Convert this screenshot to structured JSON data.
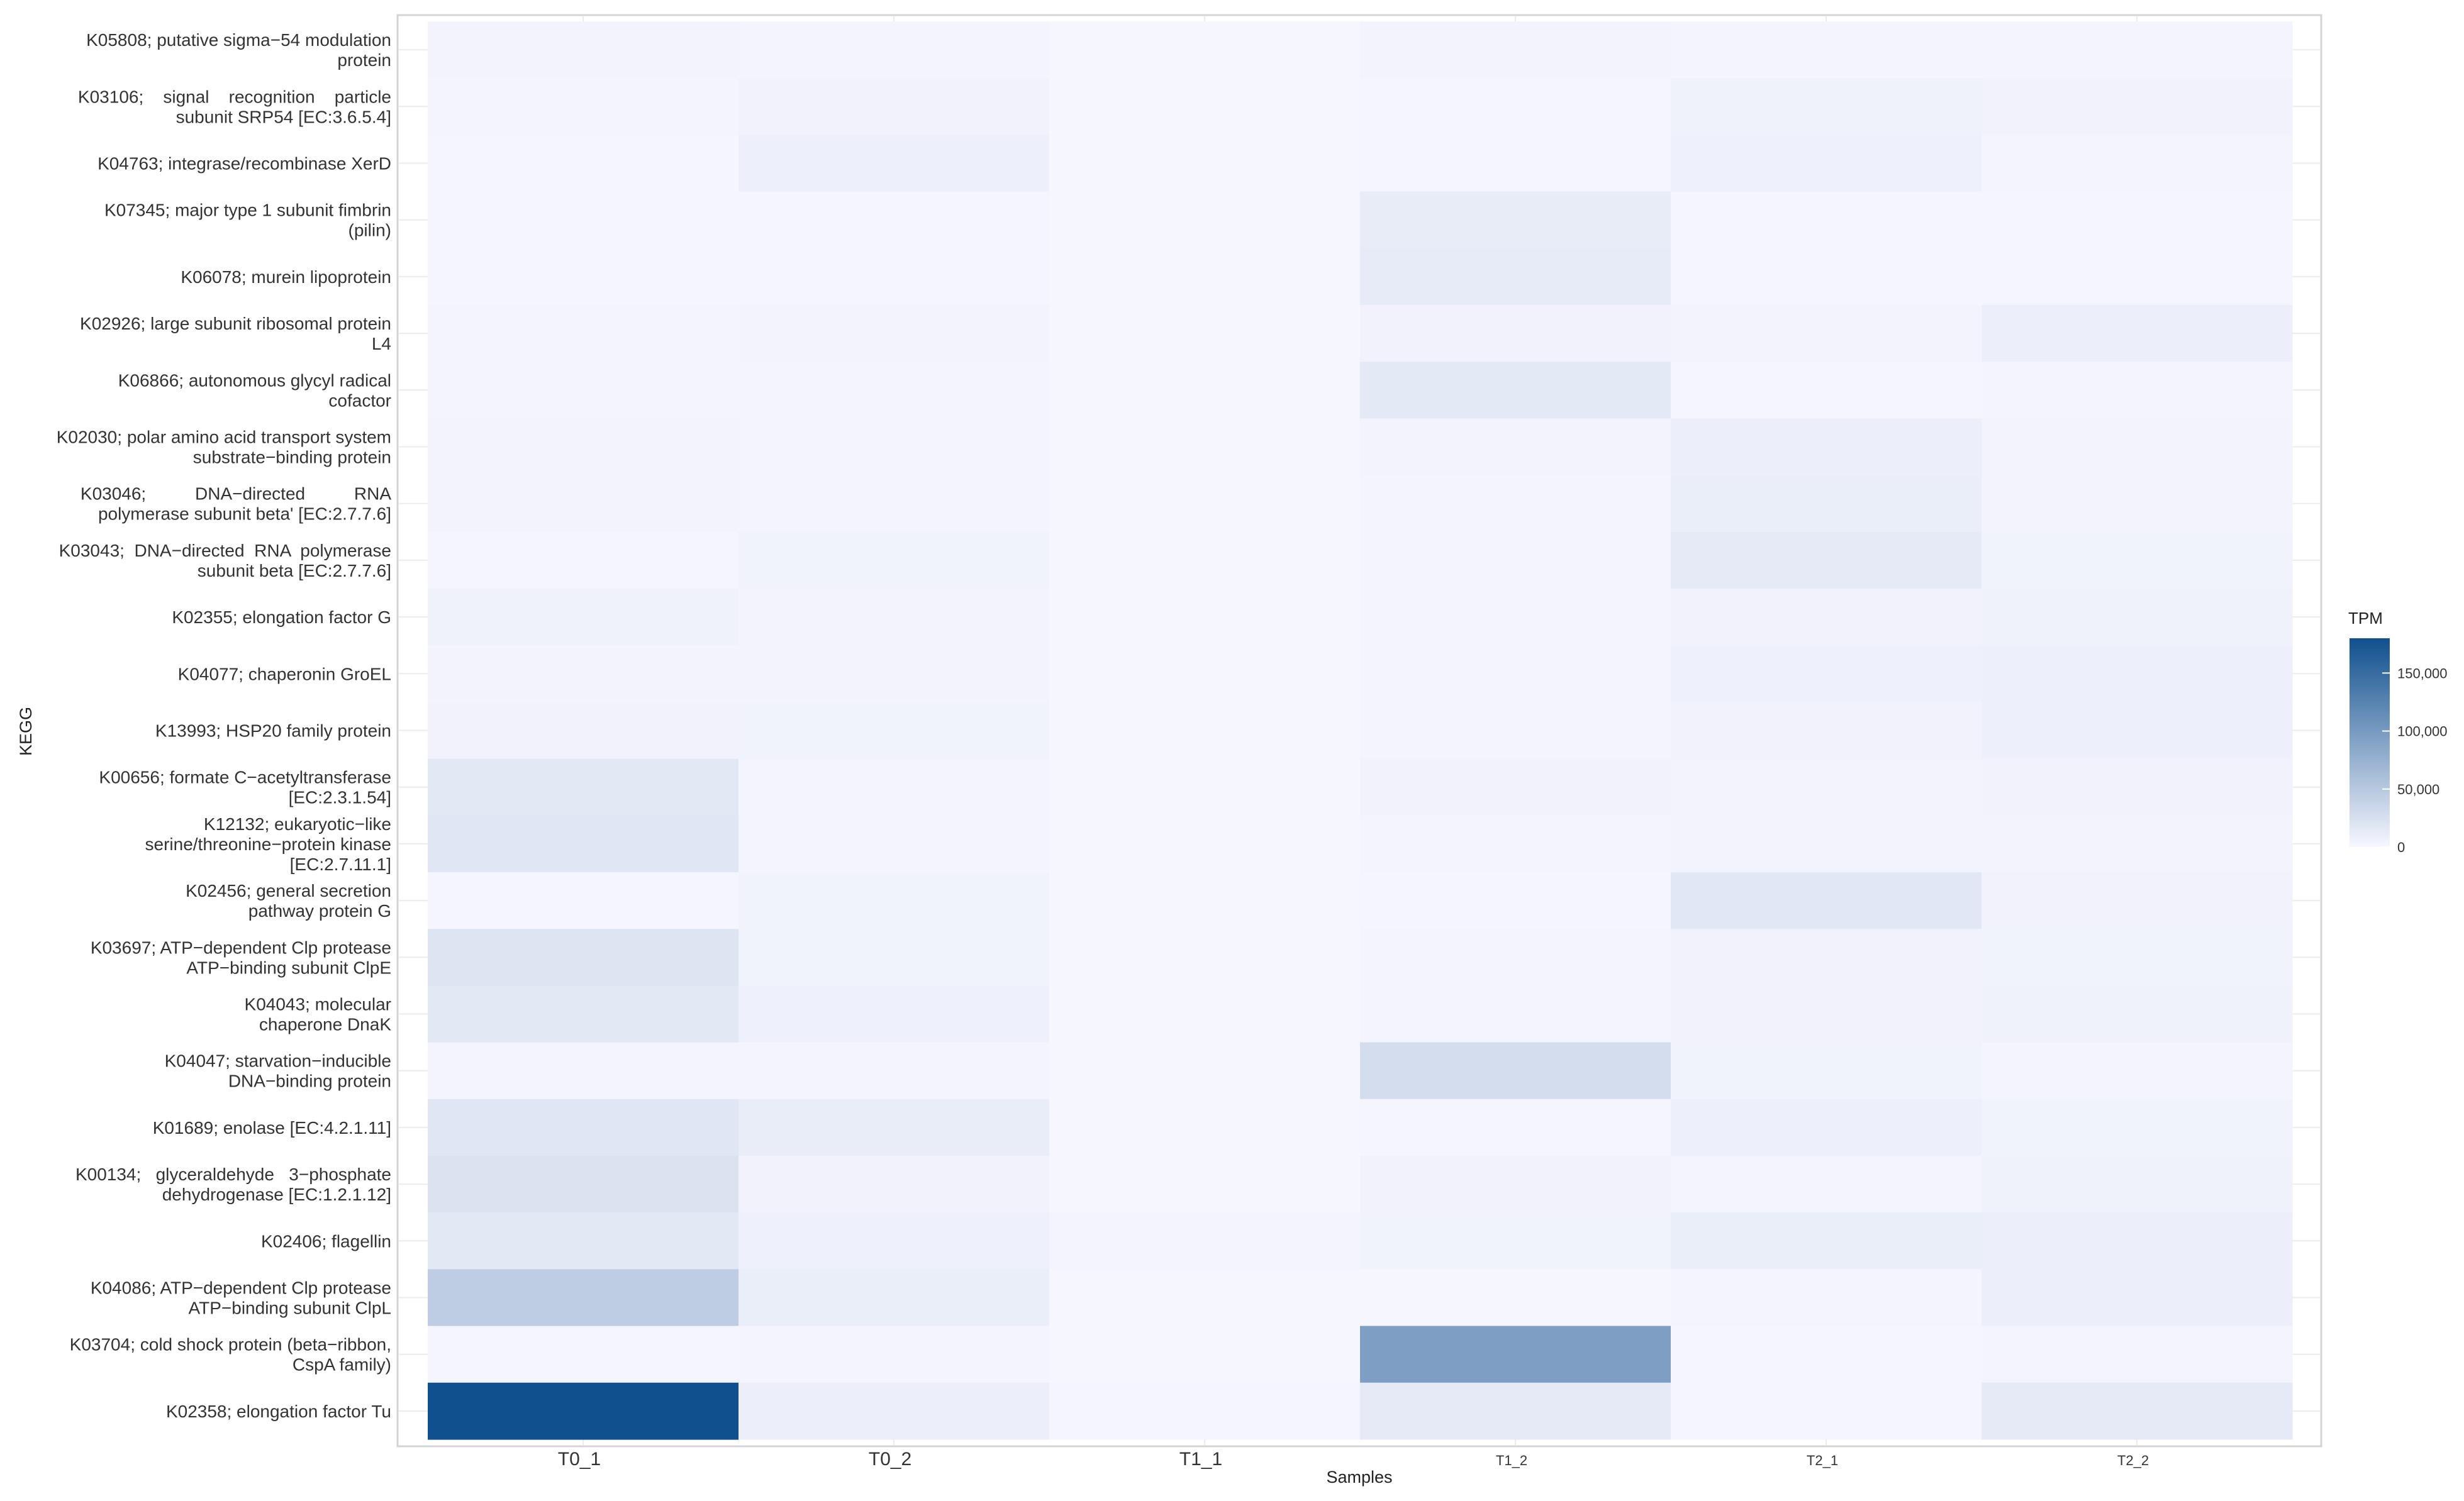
{
  "chart_data": {
    "type": "heatmap",
    "xlabel": "Samples",
    "ylabel": "KEGG",
    "x": [
      "T0_1",
      "T0_2",
      "T1_1",
      "T1_2",
      "T2_1",
      "T2_2"
    ],
    "y": [
      [
        "K05808; putative sigma−54 modulation",
        "protein"
      ],
      [
        "K03106;    signal    recognition    particle",
        "subunit SRP54 [EC:3.6.5.4]"
      ],
      [
        "K04763; integrase/recombinase XerD"
      ],
      [
        "K07345; major type 1 subunit fimbrin",
        "(pilin)"
      ],
      [
        "K06078; murein lipoprotein"
      ],
      [
        "K02926; large subunit ribosomal protein",
        "L4"
      ],
      [
        "K06866; autonomous glycyl radical",
        "cofactor"
      ],
      [
        "K02030; polar amino acid transport system",
        "substrate−binding protein"
      ],
      [
        "K03046;          DNA−directed          RNA",
        "polymerase subunit beta' [EC:2.7.7.6]"
      ],
      [
        "K03043;  DNA−directed  RNA  polymerase",
        "subunit beta [EC:2.7.7.6]"
      ],
      [
        "K02355; elongation factor G"
      ],
      [
        "K04077; chaperonin GroEL"
      ],
      [
        "K13993; HSP20 family protein"
      ],
      [
        "K00656; formate C−acetyltransferase",
        "[EC:2.3.1.54]"
      ],
      [
        "K12132; eukaryotic−like",
        "serine/threonine−protein kinase",
        "[EC:2.7.11.1]"
      ],
      [
        "K02456; general secretion",
        "pathway protein G"
      ],
      [
        "K03697; ATP−dependent Clp protease",
        "ATP−binding subunit ClpE"
      ],
      [
        "K04043; molecular",
        "chaperone DnaK"
      ],
      [
        "K04047; starvation−inducible",
        "DNA−binding protein"
      ],
      [
        "K01689; enolase [EC:4.2.1.11]"
      ],
      [
        "K00134;   glyceraldehyde   3−phosphate",
        "dehydrogenase [EC:1.2.1.12]"
      ],
      [
        "K02406; flagellin"
      ],
      [
        "K04086; ATP−dependent Clp protease",
        "ATP−binding subunit ClpL"
      ],
      [
        "K03704; cold shock protein (beta−ribbon,",
        "CspA family)"
      ],
      [
        "K02358; elongation factor Tu"
      ]
    ],
    "values": [
      [
        4000,
        3000,
        1500,
        4000,
        3000,
        3500
      ],
      [
        3500,
        5000,
        1500,
        2500,
        6000,
        5000
      ],
      [
        2500,
        8000,
        1500,
        2500,
        7000,
        3000
      ],
      [
        2000,
        2500,
        1000,
        12000,
        2500,
        2500
      ],
      [
        2000,
        2500,
        1000,
        13000,
        2500,
        2500
      ],
      [
        3000,
        4000,
        1000,
        5000,
        4000,
        9000
      ],
      [
        3500,
        3000,
        1000,
        15000,
        2500,
        3000
      ],
      [
        4000,
        3500,
        1500,
        4000,
        9000,
        4000
      ],
      [
        4000,
        3500,
        1500,
        3500,
        10000,
        4000
      ],
      [
        2500,
        4500,
        1500,
        3500,
        14000,
        4500
      ],
      [
        6000,
        4000,
        1500,
        3000,
        5000,
        6000
      ],
      [
        4000,
        4000,
        1500,
        3000,
        7000,
        8000
      ],
      [
        5000,
        5500,
        1500,
        3000,
        5000,
        8000
      ],
      [
        16000,
        3000,
        1500,
        5000,
        4000,
        5000
      ],
      [
        18000,
        3500,
        1500,
        3000,
        4000,
        4000
      ],
      [
        2500,
        4500,
        1500,
        2500,
        17000,
        5000
      ],
      [
        20000,
        4500,
        1500,
        3500,
        5000,
        4500
      ],
      [
        16000,
        7000,
        1500,
        3500,
        5000,
        6500
      ],
      [
        3500,
        3000,
        1500,
        28000,
        4500,
        3500
      ],
      [
        18000,
        11000,
        1500,
        2500,
        8000,
        4500
      ],
      [
        22000,
        5000,
        1500,
        5000,
        3500,
        6500
      ],
      [
        16000,
        7000,
        3500,
        4500,
        10000,
        9000
      ],
      [
        45000,
        10000,
        1000,
        1500,
        3000,
        9000
      ],
      [
        2500,
        3500,
        1000,
        95000,
        2500,
        3000
      ],
      [
        180000,
        9000,
        2000,
        14000,
        2500,
        14000
      ]
    ],
    "colorbar": {
      "title": "TPM",
      "ticks": [
        0,
        50000,
        100000,
        150000
      ],
      "tick_labels": [
        "0",
        "50,000",
        "100,000",
        "150,000"
      ],
      "range": [
        0,
        180000
      ],
      "color_low": "#f7f7ff",
      "color_high": "#11508e"
    },
    "grid": true,
    "legend": "right"
  }
}
